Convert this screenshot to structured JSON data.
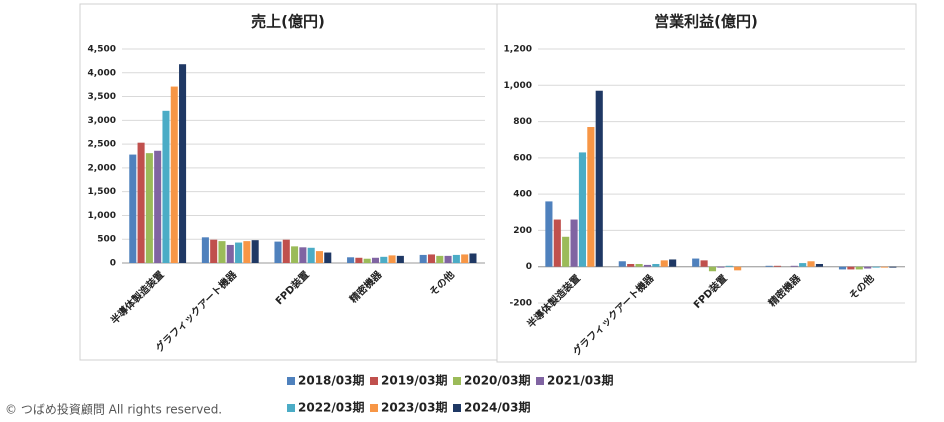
{
  "chart_data": [
    {
      "type": "bar",
      "title": "売上(億円)",
      "categories": [
        "半導体製造装置",
        "グラフィックアート機器",
        "FPD装置",
        "精密機器",
        "その他"
      ],
      "series": [
        {
          "values": [
            2280,
            540,
            450,
            120,
            170
          ]
        },
        {
          "values": [
            2530,
            490,
            490,
            110,
            180
          ]
        },
        {
          "values": [
            2310,
            460,
            350,
            90,
            150
          ]
        },
        {
          "values": [
            2360,
            380,
            330,
            110,
            150
          ]
        },
        {
          "values": [
            3200,
            430,
            320,
            130,
            170
          ]
        },
        {
          "values": [
            3710,
            460,
            250,
            160,
            180
          ]
        },
        {
          "values": [
            4180,
            480,
            220,
            150,
            200
          ]
        }
      ],
      "ylim": [
        0,
        4500
      ],
      "yticks": [
        0,
        500,
        {
          "value": 1000,
          "label": "1,000"
        },
        {
          "value": 1500,
          "label": "1,500"
        },
        {
          "value": 2000,
          "label": "2,000"
        },
        {
          "value": 2500,
          "label": "2,500"
        },
        {
          "value": 3000,
          "label": "3,000"
        },
        {
          "value": 3500,
          "label": "3,500"
        },
        {
          "value": 4000,
          "label": "4,000"
        },
        {
          "value": 4500,
          "label": "4,500"
        }
      ],
      "grid": true
    },
    {
      "type": "bar",
      "title": "営業利益(億円)",
      "categories": [
        "半導体製造装置",
        "グラフィックアート機器",
        "FPD装置",
        "精密機器",
        "その他"
      ],
      "series": [
        {
          "values": [
            360,
            30,
            45,
            5,
            -15
          ]
        },
        {
          "values": [
            260,
            15,
            35,
            5,
            -15
          ]
        },
        {
          "values": [
            165,
            15,
            -25,
            0,
            -15
          ]
        },
        {
          "values": [
            260,
            10,
            -5,
            5,
            -10
          ]
        },
        {
          "values": [
            630,
            15,
            5,
            20,
            -5
          ]
        },
        {
          "values": [
            770,
            35,
            -20,
            30,
            -5
          ]
        },
        {
          "values": [
            970,
            40,
            0,
            15,
            -5
          ]
        }
      ],
      "ylim": [
        -200,
        1200
      ],
      "yticks": [
        -200,
        0,
        200,
        400,
        600,
        800,
        {
          "value": 1000,
          "label": "1,000"
        },
        {
          "value": 1200,
          "label": "1,200"
        }
      ],
      "grid": true
    }
  ],
  "legend": [
    {
      "name": "2018/03期",
      "color": "#4f81bd"
    },
    {
      "name": "2019/03期",
      "color": "#c0504d"
    },
    {
      "name": "2020/03期",
      "color": "#9bbb59"
    },
    {
      "name": "2021/03期",
      "color": "#8064a2"
    },
    {
      "name": "2022/03期",
      "color": "#4bacc6"
    },
    {
      "name": "2023/03期",
      "color": "#f79646"
    },
    {
      "name": "2024/03期",
      "color": "#1f3864"
    }
  ],
  "footer": "© つばめ投資顧問 All rights reserved."
}
